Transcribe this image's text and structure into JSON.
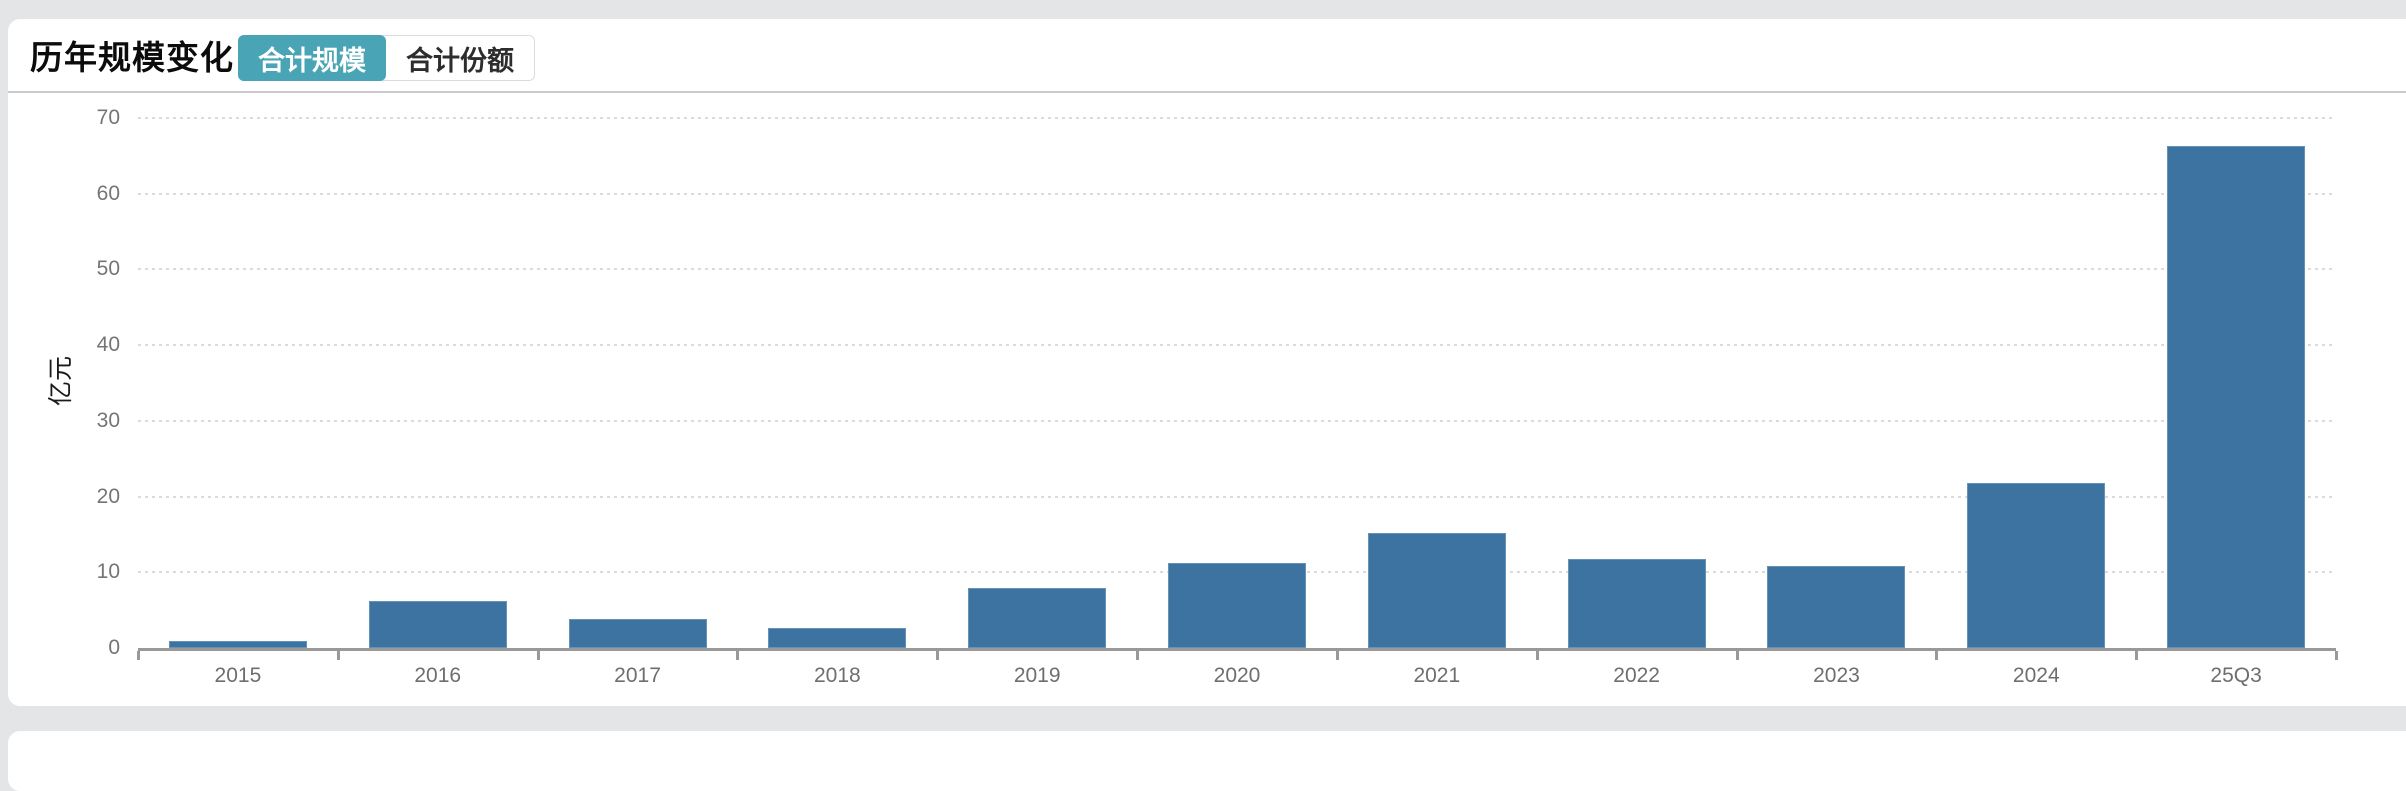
{
  "page": {
    "background": "#e4e5e7"
  },
  "header": {
    "title": "历年规模变化",
    "tabs": [
      {
        "id": "tab-total-scale",
        "label": "合计规模",
        "active": true
      },
      {
        "id": "tab-total-share",
        "label": "合计份额",
        "active": false
      }
    ],
    "active_tab_color": "#49a5b6"
  },
  "chart_data": {
    "type": "bar",
    "title": "历年规模变化",
    "series_name": "合计规模",
    "categories": [
      "2015",
      "2016",
      "2017",
      "2018",
      "2019",
      "2020",
      "2021",
      "2022",
      "2023",
      "2024",
      "25Q3"
    ],
    "values": [
      0.9,
      6.2,
      3.8,
      2.6,
      7.9,
      11.2,
      15.2,
      11.7,
      10.8,
      21.8,
      66.3
    ],
    "xlabel": "",
    "ylabel": "亿元",
    "ylim": [
      0,
      70
    ],
    "y_ticks": [
      0,
      10,
      20,
      30,
      40,
      50,
      60,
      70
    ],
    "grid": "horizontal-dotted",
    "legend_position": "none",
    "bar_color": "#3d73a0",
    "axis_color": "#999999",
    "tick_label_color": "#6e6e6e"
  }
}
